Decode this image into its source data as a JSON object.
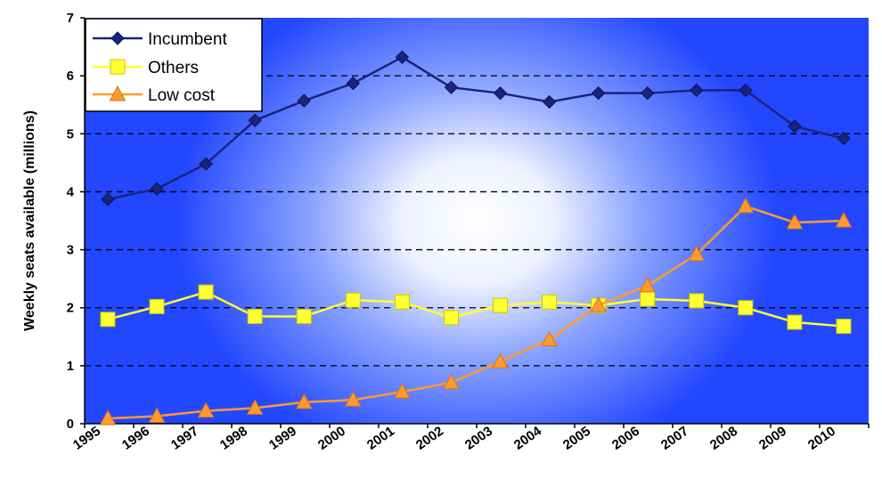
{
  "chart_data": {
    "type": "line",
    "title": "",
    "xlabel": "",
    "ylabel": "Weekly seats available (millions)",
    "x": [
      "1995",
      "1996",
      "1997",
      "1998",
      "1999",
      "2000",
      "2001",
      "2002",
      "2003",
      "2004",
      "2005",
      "2006",
      "2007",
      "2008",
      "2009",
      "2010"
    ],
    "ylim": [
      0,
      7
    ],
    "yticks": [
      "0",
      "1",
      "2",
      "3",
      "4",
      "5",
      "6",
      "7"
    ],
    "grid": "horizontal dashed",
    "legend_position": "top-left",
    "series": [
      {
        "name": "Incumbent",
        "color": "#1a237e",
        "marker": "diamond",
        "values": [
          3.87,
          4.05,
          4.48,
          5.23,
          5.57,
          5.87,
          6.32,
          5.8,
          5.7,
          5.55,
          5.7,
          5.7,
          5.75,
          5.75,
          5.13,
          4.92
        ]
      },
      {
        "name": "Others",
        "color": "#ffff33",
        "marker": "square",
        "values": [
          1.8,
          2.02,
          2.27,
          1.85,
          1.85,
          2.13,
          2.1,
          1.83,
          2.04,
          2.1,
          2.04,
          2.15,
          2.12,
          2.0,
          1.75,
          1.68
        ]
      },
      {
        "name": "Low cost",
        "color": "#ff9a2e",
        "marker": "triangle",
        "values": [
          0.09,
          0.13,
          0.22,
          0.27,
          0.37,
          0.41,
          0.55,
          0.71,
          1.07,
          1.45,
          2.04,
          2.38,
          2.92,
          3.75,
          3.47,
          3.5
        ]
      }
    ]
  }
}
